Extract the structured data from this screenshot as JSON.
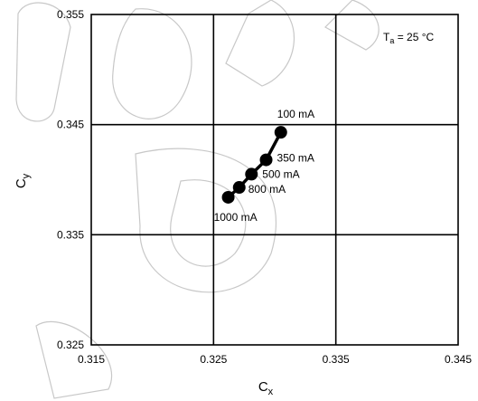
{
  "chart_data": {
    "type": "line",
    "xlabel": "C",
    "xlabel_sub": "x",
    "ylabel": "C",
    "ylabel_sub": "y",
    "xlim": [
      0.315,
      0.345
    ],
    "ylim": [
      0.325,
      0.355
    ],
    "x_ticks": [
      "0.315",
      "0.325",
      "0.335",
      "0.345"
    ],
    "y_ticks": [
      "0.325",
      "0.335",
      "0.345",
      "0.355"
    ],
    "x_tick_values": [
      0.315,
      0.325,
      0.335,
      0.345
    ],
    "y_tick_values": [
      0.325,
      0.335,
      0.345,
      0.355
    ],
    "grid": true,
    "condition": {
      "main": "T",
      "sub": "a",
      "rest": " = 25 °C"
    },
    "series": [
      {
        "points": [
          {
            "label": "100 mA",
            "x": 0.3305,
            "y": 0.3443
          },
          {
            "label": "350 mA",
            "x": 0.3293,
            "y": 0.3418
          },
          {
            "label": "500 mA",
            "x": 0.3281,
            "y": 0.3405
          },
          {
            "label": "800 mA",
            "x": 0.3271,
            "y": 0.3393
          },
          {
            "label": "1000 mA",
            "x": 0.3262,
            "y": 0.3384
          }
        ]
      }
    ]
  },
  "colors": {
    "line": "#000000",
    "marker": "#000000",
    "grid": "#000000"
  }
}
